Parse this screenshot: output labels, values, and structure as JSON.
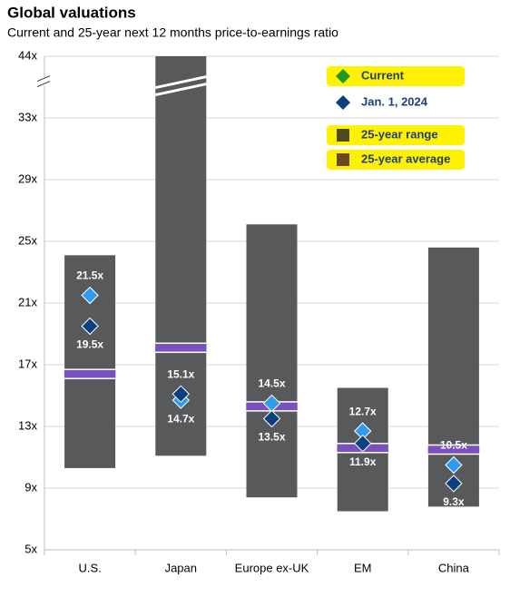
{
  "chart_data": {
    "type": "range",
    "title": "Global valuations",
    "subtitle": "Current and 25-year next 12 months price-to-earnings ratio",
    "categories": [
      "U.S.",
      "Japan",
      "Europe ex-UK",
      "EM",
      "China"
    ],
    "ylim": [
      5,
      44
    ],
    "yticks": [
      {
        "value": 5,
        "label": "5x"
      },
      {
        "value": 9,
        "label": "9x"
      },
      {
        "value": 13,
        "label": "13x"
      },
      {
        "value": 17,
        "label": "17x"
      },
      {
        "value": 21,
        "label": "21x"
      },
      {
        "value": 25,
        "label": "25x"
      },
      {
        "value": 29,
        "label": "29x"
      },
      {
        "value": 33,
        "label": "33x"
      },
      {
        "value": 44,
        "label": "44x"
      }
    ],
    "axis_break": true,
    "grid": true,
    "legend_position": "top-right",
    "series": [
      {
        "name": "Current",
        "kind": "marker",
        "color": "#2e9bf0",
        "legend_color": "#1f9a1f",
        "highlighted": true,
        "values": [
          21.5,
          14.7,
          14.5,
          12.7,
          10.5
        ],
        "value_labels": [
          "21.5x",
          "14.7x",
          "14.5x",
          "12.7x",
          "10.5x"
        ]
      },
      {
        "name": "Jan. 1, 2024",
        "kind": "marker",
        "color": "#0b3f80",
        "legend_color": "#0b3f80",
        "highlighted": false,
        "values": [
          19.5,
          15.1,
          13.5,
          11.9,
          9.3
        ],
        "value_labels": [
          "19.5x",
          "15.1x",
          "13.5x",
          "11.9x",
          "9.3x"
        ]
      },
      {
        "name": "25-year range",
        "kind": "range",
        "color": "#58595b",
        "legend_color": "#4d4a1c",
        "highlighted": true,
        "low": [
          10.3,
          11.1,
          8.4,
          7.5,
          7.8
        ],
        "high": [
          24.1,
          44,
          26.1,
          15.5,
          24.6
        ]
      },
      {
        "name": "25-year average",
        "kind": "average",
        "color": "#7a4fc0",
        "legend_color": "#6a4526",
        "highlighted": true,
        "values": [
          16.4,
          18.1,
          14.3,
          11.6,
          11.5
        ]
      }
    ]
  }
}
